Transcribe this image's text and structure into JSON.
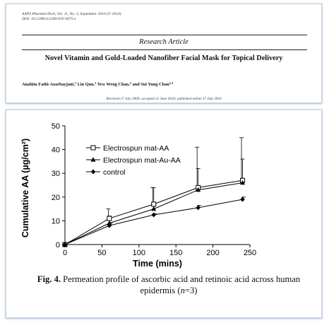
{
  "header": {
    "journal_line_1": "AAPS PharmSciTech, Vol. 11, No. 3, September 2010 (© 2010)",
    "journal_line_2": "DOI: 10.1208/s12249-010-9475-z",
    "article_type": "Research Article",
    "title": "Novel Vitamin and Gold-Loaded Nanofiber Facial Mask for Topical Delivery",
    "authors": [
      {
        "name": "Anahita Fathi-Azarbayjani,",
        "sup": "1"
      },
      {
        "name": " Lin Qun,",
        "sup": "1"
      },
      {
        "name": " Yew Weng Chan,",
        "sup": "2"
      },
      {
        "name": " and Sui Yung Chan",
        "sup": "1,3"
      }
    ],
    "dates": "Received 17 July 2009; accepted 22 June 2010; published online 27 July 2010"
  },
  "figure": {
    "label": "Fig. 4.",
    "caption_pre": " Permeation profile of ascorbic acid and retinoic acid across human epidermis (",
    "caption_n": "n",
    "caption_post": "=3)"
  },
  "chart_data": {
    "type": "line",
    "xlabel": "Time (mins)",
    "ylabel": "Cumulative AA  (µg/cm²)",
    "xlim": [
      0,
      250
    ],
    "ylim": [
      0,
      50
    ],
    "xticks": [
      0,
      50,
      100,
      150,
      200,
      250
    ],
    "yticks": [
      0,
      10,
      20,
      30,
      40,
      50
    ],
    "grid": false,
    "legend_position": "top-left",
    "x": [
      0,
      60,
      120,
      180,
      240
    ],
    "series": [
      {
        "name": "Electrospun mat-AA",
        "marker": "open-square",
        "values": [
          0,
          11,
          17,
          24,
          27
        ],
        "error_up": [
          0,
          4,
          7,
          17,
          18
        ]
      },
      {
        "name": "Electrospun mat-Au-AA",
        "marker": "filled-triangle",
        "values": [
          0,
          9,
          15,
          23,
          26
        ],
        "error_up": [
          0,
          3,
          9,
          9,
          10
        ]
      },
      {
        "name": "control",
        "marker": "filled-diamond",
        "values": [
          0,
          8,
          12.5,
          15.5,
          19
        ],
        "error_up": [
          0,
          1,
          0.5,
          1,
          1
        ]
      }
    ]
  }
}
